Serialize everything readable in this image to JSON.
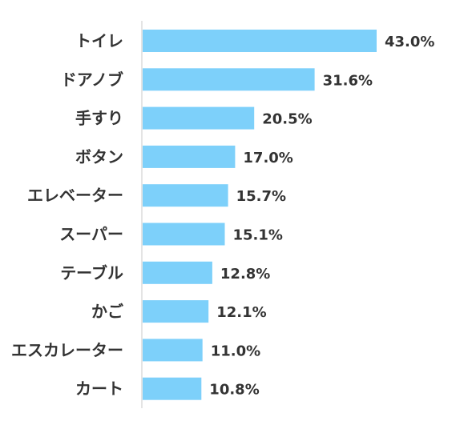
{
  "chart_data": {
    "type": "bar",
    "orientation": "horizontal",
    "categories": [
      "トイレ",
      "ドアノブ",
      "手すり",
      "ボタン",
      "エレベーター",
      "スーパー",
      "テーブル",
      "かご",
      "エスカレーター",
      "カート"
    ],
    "values": [
      43.0,
      31.6,
      20.5,
      17.0,
      15.7,
      15.1,
      12.8,
      12.1,
      11.0,
      10.8
    ],
    "value_labels": [
      "43.0%",
      "31.6%",
      "20.5%",
      "17.0%",
      "15.7%",
      "15.1%",
      "12.8%",
      "12.1%",
      "11.0%",
      "10.8%"
    ],
    "xlim": [
      0,
      43.0
    ],
    "grid": false,
    "bar_color": "#7dd0fa",
    "axis_color": "#c8c8c8",
    "text_color": "#333333"
  }
}
